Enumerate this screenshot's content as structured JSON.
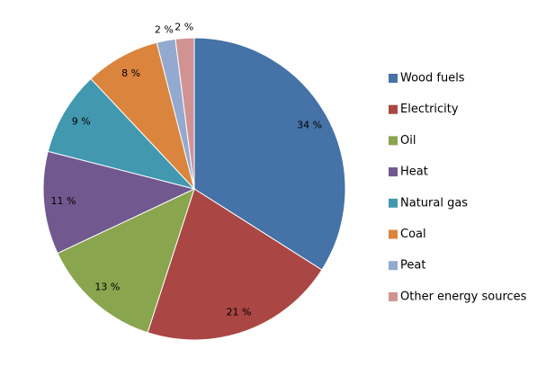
{
  "chart_data": {
    "type": "pie",
    "categories": [
      "Wood fuels",
      "Electricity",
      "Oil",
      "Heat",
      "Natural gas",
      "Coal",
      "Peat",
      "Other energy sources"
    ],
    "values": [
      34,
      21,
      13,
      11,
      9,
      8,
      2,
      2
    ],
    "value_labels": [
      "34 %",
      "21 %",
      "13 %",
      "11 %",
      "9 %",
      "8 %",
      "2 %",
      "2 %"
    ],
    "colors": [
      "#4572a7",
      "#aa4643",
      "#89a54e",
      "#71588f",
      "#4198af",
      "#db843d",
      "#93a9cf",
      "#d19392"
    ],
    "legend": "right"
  }
}
